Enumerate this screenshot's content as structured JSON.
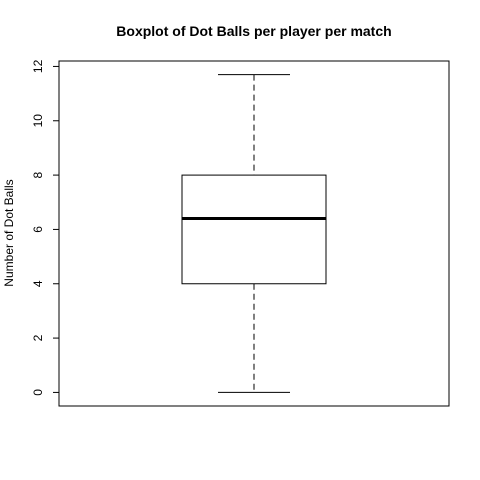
{
  "chart_data": {
    "type": "boxplot",
    "title": "Boxplot of Dot Balls per player per match",
    "xlabel": "",
    "ylabel": "Number of Dot Balls",
    "ylim": [
      -0.5,
      12.2
    ],
    "yticks": [
      0,
      2,
      4,
      6,
      8,
      10,
      12
    ],
    "grid": false,
    "legend": "none",
    "series": [
      {
        "whisker_low": 0,
        "q1": 4,
        "median": 6.4,
        "q3": 8,
        "whisker_high": 11.7
      }
    ]
  }
}
